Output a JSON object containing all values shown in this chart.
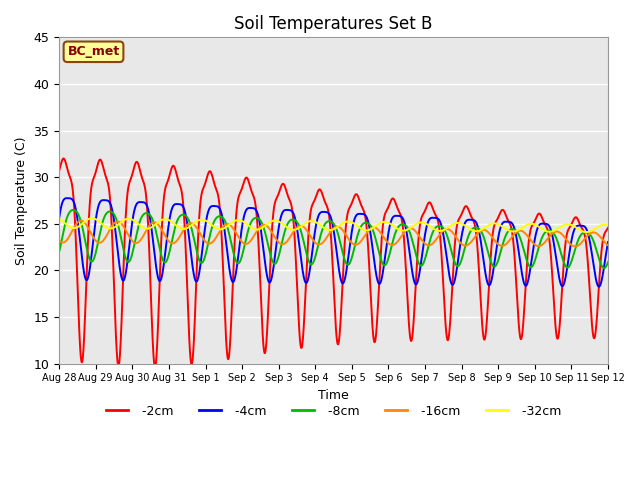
{
  "title": "Soil Temperatures Set B",
  "xlabel": "Time",
  "ylabel": "Soil Temperature (C)",
  "annotation": "BC_met",
  "ylim": [
    10,
    45
  ],
  "background_color": "#e8e8e8",
  "series_colors": {
    "-2cm": "#ff0000",
    "-4cm": "#0000ff",
    "-8cm": "#00bb00",
    "-16cm": "#ff8800",
    "-32cm": "#ffff00"
  },
  "tick_labels": [
    "Aug 28",
    "Aug 29",
    "Aug 30",
    "Aug 31",
    "Sep 1",
    "Sep 2",
    "Sep 3",
    "Sep 4",
    "Sep 5",
    "Sep 6",
    "Sep 7",
    "Sep 8",
    "Sep 9",
    "Sep 10",
    "Sep 11",
    "Sep 12"
  ],
  "tick_positions": [
    0,
    1,
    2,
    3,
    4,
    5,
    6,
    7,
    8,
    9,
    10,
    11,
    12,
    13,
    14,
    15
  ],
  "yticks": [
    10,
    15,
    20,
    25,
    30,
    35,
    40,
    45
  ],
  "linewidth": 1.4
}
